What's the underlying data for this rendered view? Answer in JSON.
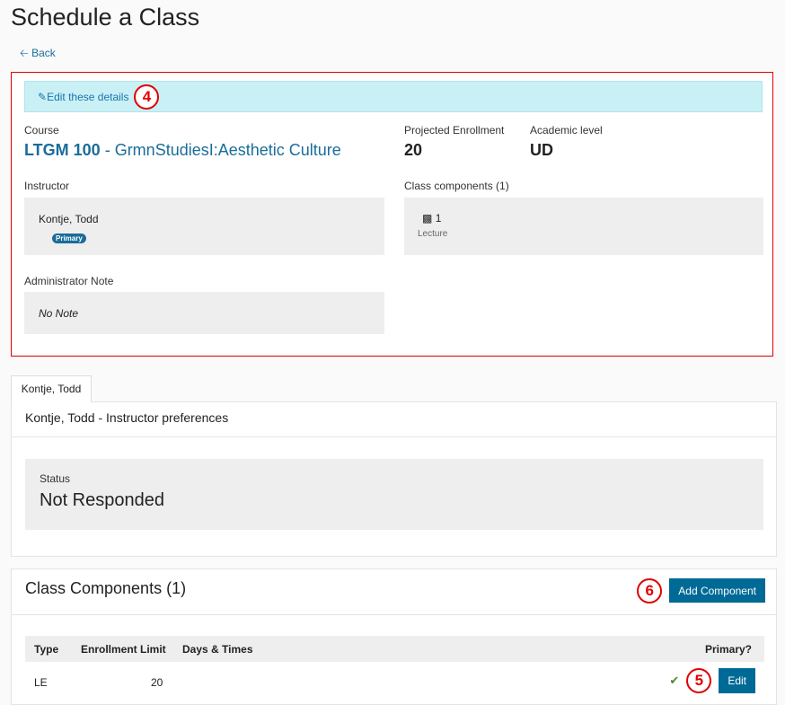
{
  "page": {
    "title": "Schedule a Class",
    "back": "Back"
  },
  "details": {
    "edit": "Edit these details",
    "callout": "4",
    "course_label": "Course",
    "course_code": "LTGM 100",
    "course_sep": " - ",
    "course_name": "GrmnStudiesI:Aesthetic Culture",
    "enroll_label": "Projected Enrollment",
    "enroll_value": "20",
    "level_label": "Academic level",
    "level_value": "UD",
    "instructor_label": "Instructor",
    "instructor_name": "Kontje, Todd",
    "instructor_badge": "Primary",
    "components_label": "Class components (1)",
    "component_count": "1",
    "component_type": "Lecture",
    "note_label": "Administrator Note",
    "note_value": "No Note"
  },
  "instructor_tab": {
    "tab": "Kontje, Todd",
    "heading": "Kontje, Todd - Instructor preferences",
    "status_label": "Status",
    "status_value": "Not Responded"
  },
  "components": {
    "heading": "Class Components (1)",
    "add_button": "Add Component",
    "add_callout": "6",
    "columns": [
      "Type",
      "Enrollment Limit",
      "Days & Times",
      "Primary?"
    ],
    "rows": [
      {
        "type": "LE",
        "limit": "20",
        "days": "",
        "primary": true,
        "edit": "Edit",
        "callout": "5"
      }
    ]
  },
  "colors": {
    "accent": "#006a96",
    "link": "#1a6d9a",
    "banner": "#c9f0f5",
    "callout": "#e00000"
  }
}
